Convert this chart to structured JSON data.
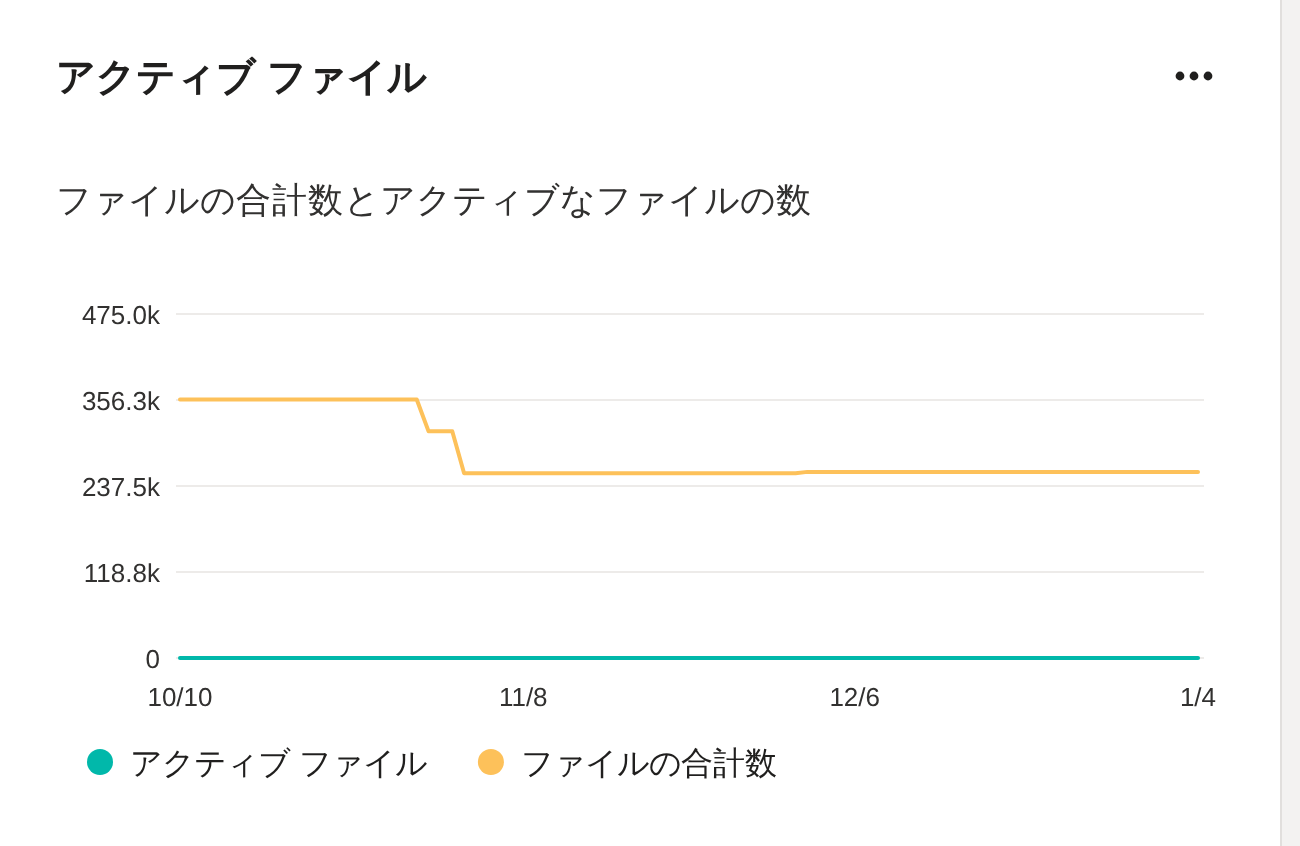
{
  "chart_data": {
    "type": "line",
    "title": "アクティブ ファイル",
    "subtitle": "ファイルの合計数とアクティブなファイルの数",
    "categories": [
      "10/10",
      null,
      null,
      null,
      null,
      null,
      null,
      null,
      null,
      null,
      null,
      null,
      null,
      null,
      null,
      null,
      null,
      null,
      null,
      null,
      null,
      null,
      null,
      null,
      null,
      null,
      null,
      null,
      null,
      "11/8",
      null,
      null,
      null,
      null,
      null,
      null,
      null,
      null,
      null,
      null,
      null,
      null,
      null,
      null,
      null,
      null,
      null,
      null,
      null,
      null,
      null,
      null,
      null,
      null,
      null,
      null,
      null,
      "12/6",
      null,
      null,
      null,
      null,
      null,
      null,
      null,
      null,
      null,
      null,
      null,
      null,
      null,
      null,
      null,
      null,
      null,
      null,
      null,
      null,
      null,
      null,
      null,
      null,
      null,
      null,
      null,
      null,
      "1/4"
    ],
    "series": [
      {
        "name": "アクティブ ファイル",
        "color": "#01b8aa",
        "values": [
          0,
          0,
          0,
          0,
          0,
          0,
          0,
          0,
          0,
          0,
          0,
          0,
          0,
          0,
          0,
          0,
          0,
          0,
          0,
          0,
          0,
          0,
          0,
          0,
          0,
          0,
          0,
          0,
          0,
          0,
          0,
          0,
          0,
          0,
          0,
          0,
          0,
          0,
          0,
          0,
          0,
          0,
          0,
          0,
          0,
          0,
          0,
          0,
          0,
          0,
          0,
          0,
          0,
          0,
          0,
          0,
          0,
          0,
          0,
          0,
          0,
          0,
          0,
          0,
          0,
          0,
          0,
          0,
          0,
          0,
          0,
          0,
          0,
          0,
          0,
          0,
          0,
          0,
          0,
          0,
          0,
          0,
          0,
          0,
          0,
          0,
          0
        ]
      },
      {
        "name": "ファイルの合計数",
        "color": "#fdc15a",
        "values": [
          357000,
          357000,
          357000,
          357000,
          357000,
          357000,
          357000,
          357000,
          357000,
          357000,
          357000,
          357000,
          357000,
          357000,
          357000,
          357000,
          357000,
          357000,
          357000,
          357000,
          357000,
          313000,
          313000,
          313000,
          255000,
          255000,
          255000,
          255000,
          255000,
          255000,
          255000,
          255000,
          255000,
          255000,
          255000,
          255000,
          255000,
          255000,
          255000,
          255000,
          255000,
          255000,
          255000,
          255000,
          255000,
          255000,
          255000,
          255000,
          255000,
          255000,
          255000,
          255000,
          255000,
          257000,
          257000,
          257000,
          257000,
          257000,
          257000,
          257000,
          257000,
          257000,
          257000,
          257000,
          257000,
          257000,
          257000,
          257000,
          257000,
          257000,
          257000,
          257000,
          257000,
          257000,
          257000,
          257000,
          257000,
          257000,
          257000,
          257000,
          257000,
          257000,
          257000,
          257000,
          257000,
          257000,
          257000
        ]
      }
    ],
    "ylim": [
      0,
      475000
    ],
    "yticks": [
      0,
      {
        "value": 118750,
        "label": "118.8k"
      },
      {
        "value": 237500,
        "label": "237.5k"
      },
      {
        "value": 356250,
        "label": "356.3k"
      },
      {
        "value": 475000,
        "label": "475.0k"
      }
    ],
    "grid": "y",
    "legend": "bottom",
    "line_style": "solid"
  }
}
